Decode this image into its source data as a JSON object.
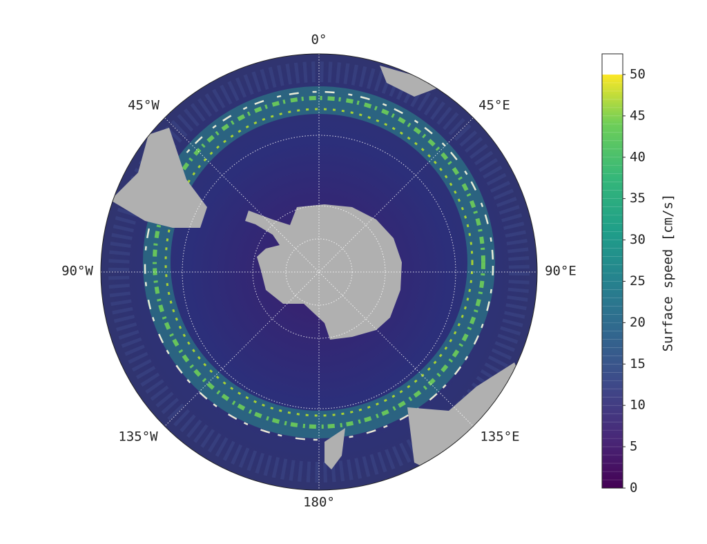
{
  "map": {
    "longitude_labels": [
      "0°",
      "45°E",
      "90°E",
      "135°E",
      "180°",
      "135°W",
      "90°W",
      "45°W"
    ]
  },
  "colorbar": {
    "label": "Surface speed [cm/s]",
    "ylim": [
      0,
      52.5
    ],
    "yticks": [
      0,
      5,
      10,
      15,
      20,
      25,
      30,
      35,
      40,
      45,
      50
    ]
  }
}
